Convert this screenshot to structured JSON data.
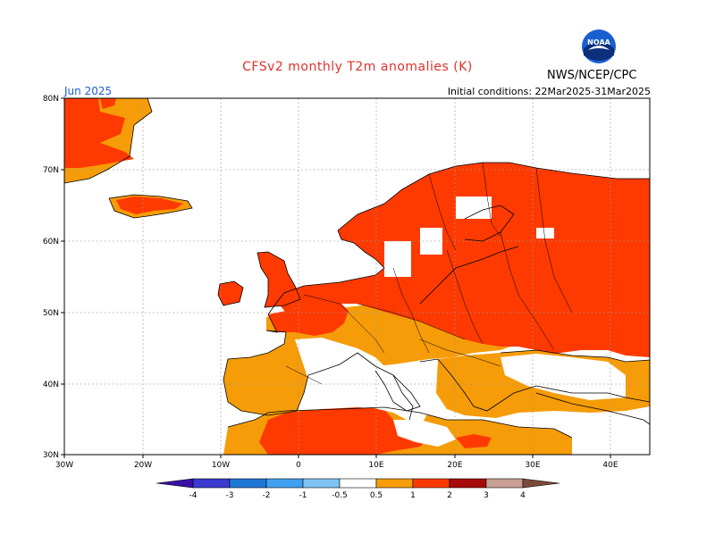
{
  "header": {
    "title": "CFSv2 monthly T2m anomalies (K)",
    "agency": "NWS/NCEP/CPC",
    "period": "Jun 2025",
    "initial_conditions": "Initial conditions: 22Mar2025-31Mar2025",
    "logo_text": "NOAA"
  },
  "axes": {
    "lat_labels": [
      "80N",
      "70N",
      "60N",
      "50N",
      "40N",
      "30N"
    ],
    "lon_labels": [
      "30W",
      "20W",
      "10W",
      "0",
      "10E",
      "20E",
      "30E",
      "40E"
    ]
  },
  "colorbar": {
    "labels": [
      "-4",
      "-3",
      "-2",
      "-1",
      "-0.5",
      "0.5",
      "1",
      "2",
      "3",
      "4"
    ],
    "colors": [
      "#3a10a8",
      "#3a3ad0",
      "#1f78d6",
      "#3fa0ee",
      "#7fc3f6",
      "#ffffff",
      "#f59c08",
      "#ff3a00",
      "#a60a0a",
      "#c9a095",
      "#7a4a3a"
    ]
  },
  "legend_colors": {
    "a05_1": "#f59c08",
    "a1_2": "#ff3a00"
  }
}
